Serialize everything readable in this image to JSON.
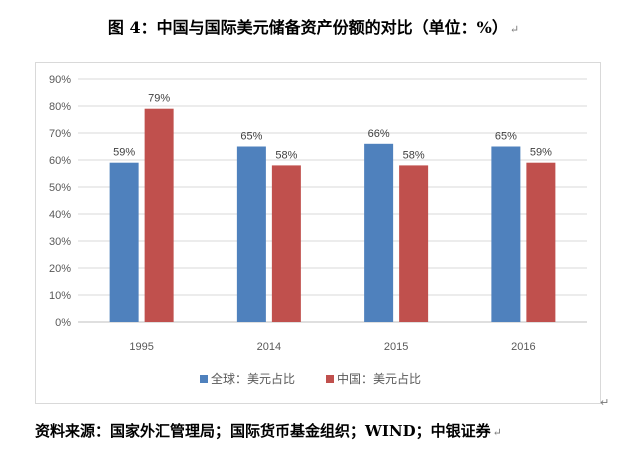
{
  "title": "图 4：中国与国际美元储备资产份额的对比（单位：%）",
  "source": "资料来源：国家外汇管理局；国际货币基金组织；WIND；中银证券",
  "paragraph_mark": "↵",
  "chart_data": {
    "type": "bar",
    "categories": [
      "1995",
      "2014",
      "2015",
      "2016"
    ],
    "series": [
      {
        "name": "全球：美元占比",
        "values": [
          59,
          65,
          66,
          65
        ],
        "labels": [
          "59%",
          "65%",
          "66%",
          "65%"
        ],
        "color": "#4f81bd"
      },
      {
        "name": "中国：美元占比",
        "values": [
          79,
          58,
          58,
          59
        ],
        "labels": [
          "79%",
          "58%",
          "58%",
          "59%"
        ],
        "color": "#c0504d"
      }
    ],
    "ylim": [
      0,
      90
    ],
    "yticks": [
      "0%",
      "10%",
      "20%",
      "30%",
      "40%",
      "50%",
      "60%",
      "70%",
      "80%",
      "90%"
    ],
    "grid": true,
    "legend": "bottom",
    "xlabel": "",
    "ylabel": ""
  }
}
